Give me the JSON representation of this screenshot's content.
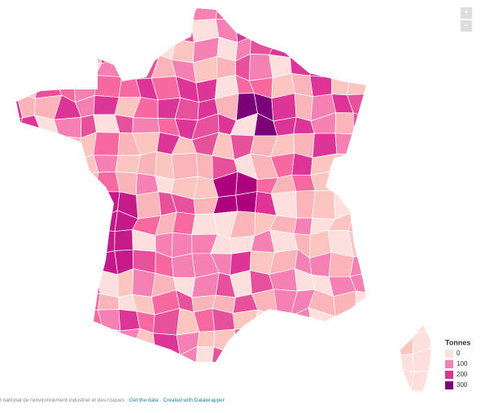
{
  "legend": {
    "title": "Tonnes",
    "items": [
      {
        "value": 0,
        "color": "#fde0dd"
      },
      {
        "value": 100,
        "color": "#f580b4"
      },
      {
        "value": 200,
        "color": "#dd3497"
      },
      {
        "value": 300,
        "color": "#7a0177"
      }
    ]
  },
  "controls": {
    "zoom_in": "+",
    "zoom_out": "−"
  },
  "footer": {
    "source": "t national de l'environnement industriel et des risques",
    "separator": "·",
    "get_data": "Get the data",
    "credit": "Created with Datawrapper"
  }
}
